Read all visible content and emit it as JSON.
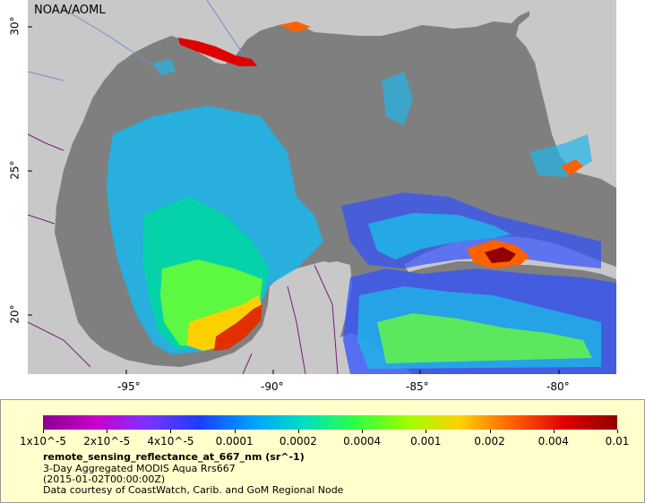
{
  "map": {
    "credit": "NOAA/AOML",
    "lon_labels": [
      "-95°",
      "-90°",
      "-85°",
      "-80°"
    ],
    "lat_labels": [
      "30°",
      "25°",
      "20°"
    ]
  },
  "legend": {
    "colorbar_ticks": [
      "1x10^-5",
      "2x10^-5",
      "4x10^-5",
      "0.0001",
      "0.0002",
      "0.0004",
      "0.001",
      "0.002",
      "0.004",
      "0.01"
    ],
    "title": "remote_sensing_reflectance_at_667_nm (sr^-1)",
    "subtitle": "3-Day Aggregated MODIS Aqua Rrs667",
    "time": "(2015-01-02T00:00:00Z)",
    "courtesy": "Data courtesy of CoastWatch, Carib. and GoM Regional Node"
  },
  "colors": {
    "land": "#c8c8c8",
    "ocean_nodata": "#7f7f7f",
    "legend_bg": "#ffffcc",
    "colorbar": [
      "#8a0090",
      "#cc00cc",
      "#7a33ff",
      "#1c3dff",
      "#00a0ff",
      "#00e0c0",
      "#30ff40",
      "#a0ff00",
      "#ffd000",
      "#ff6000",
      "#e00000",
      "#900000"
    ]
  }
}
